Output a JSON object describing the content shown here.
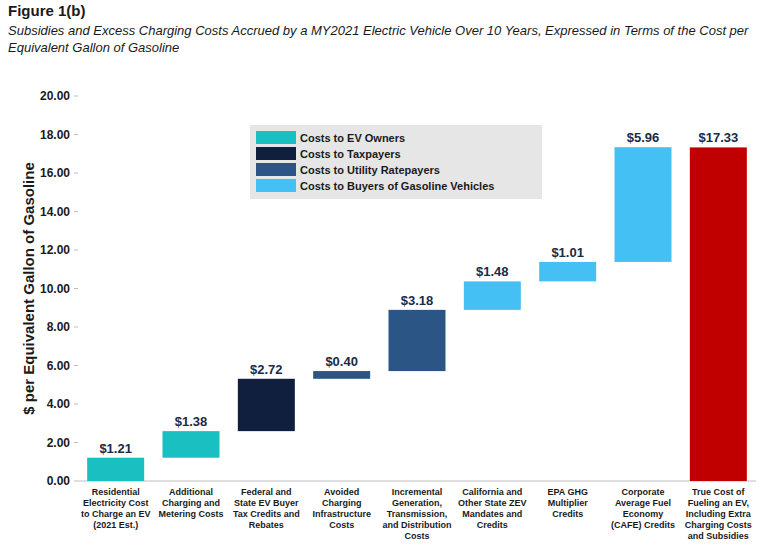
{
  "chart_data": {
    "type": "waterfall",
    "title": "Figure 1(b)",
    "subtitle": "Subsidies and Excess Charging Costs Accrued by a MY2021 Electric Vehicle Over 10 Years, Expressed in Terms of the Cost per Equivalent Gallon of Gasoline",
    "y_label": "$ per Equivalent Gallon of Gasoline",
    "categories": [
      "Residential Electricity Cost to Charge an EV (2021 Est.)",
      "Additional Charging and Metering Costs",
      "Federal and State EV Buyer Tax Credits and Rebates",
      "Avoided Charging Infrastructure Costs",
      "Incremental Generation, Transmission, and Distribution Costs",
      "California and Other State ZEV Mandates and Credits",
      "EPA GHG Multiplier Credits",
      "Corporate Average Fuel Economy (CAFE) Credits",
      "True Cost of Fueling an EV, Including Extra Charging Costs and Subsidies"
    ],
    "series": [
      {
        "name": "Costs to EV Owners",
        "color": "#19bfc1",
        "values": [
          1.21,
          1.38,
          null,
          null,
          null,
          null,
          null,
          null,
          null
        ],
        "value_labels": [
          "$1.21",
          "$1.38",
          null,
          null,
          null,
          null,
          null,
          null,
          null
        ]
      },
      {
        "name": "Costs to Taxpayers",
        "color": "#0f1f3d",
        "values": [
          null,
          null,
          2.72,
          null,
          null,
          null,
          null,
          null,
          null
        ],
        "value_labels": [
          null,
          null,
          "$2.72",
          null,
          null,
          null,
          null,
          null,
          null
        ]
      },
      {
        "name": "Costs to Utility Ratepayers",
        "color": "#2a5585",
        "values": [
          null,
          null,
          null,
          0.4,
          3.18,
          null,
          null,
          null,
          null
        ],
        "value_labels": [
          null,
          null,
          null,
          "$0.40",
          "$3.18",
          null,
          null,
          null,
          null
        ]
      },
      {
        "name": "Costs to Buyers of Gasoline Vehicles",
        "color": "#45c0f5",
        "values": [
          null,
          null,
          null,
          null,
          null,
          1.48,
          1.01,
          5.96,
          null
        ],
        "value_labels": [
          null,
          null,
          null,
          null,
          null,
          "$1.48",
          "$1.01",
          "$5.96",
          null
        ]
      }
    ],
    "total": {
      "value": 17.33,
      "value_label": "$17.33",
      "color": "#c00000"
    },
    "ylim": [
      0,
      20
    ],
    "yticks": [
      {
        "value": 0,
        "label": "0.00"
      },
      {
        "value": 2,
        "label": "2.00"
      },
      {
        "value": 4,
        "label": "4.00"
      },
      {
        "value": 6,
        "label": "6.00"
      },
      {
        "value": 8,
        "label": "8.00"
      },
      {
        "value": 10,
        "label": "10.00"
      },
      {
        "value": 12,
        "label": "12.00"
      },
      {
        "value": 14,
        "label": "14.00"
      },
      {
        "value": 16,
        "label": "16.00"
      },
      {
        "value": 18,
        "label": "18.00"
      },
      {
        "value": 20,
        "label": "20.00"
      }
    ],
    "grid": false,
    "legend": "top",
    "data_labels": true
  }
}
